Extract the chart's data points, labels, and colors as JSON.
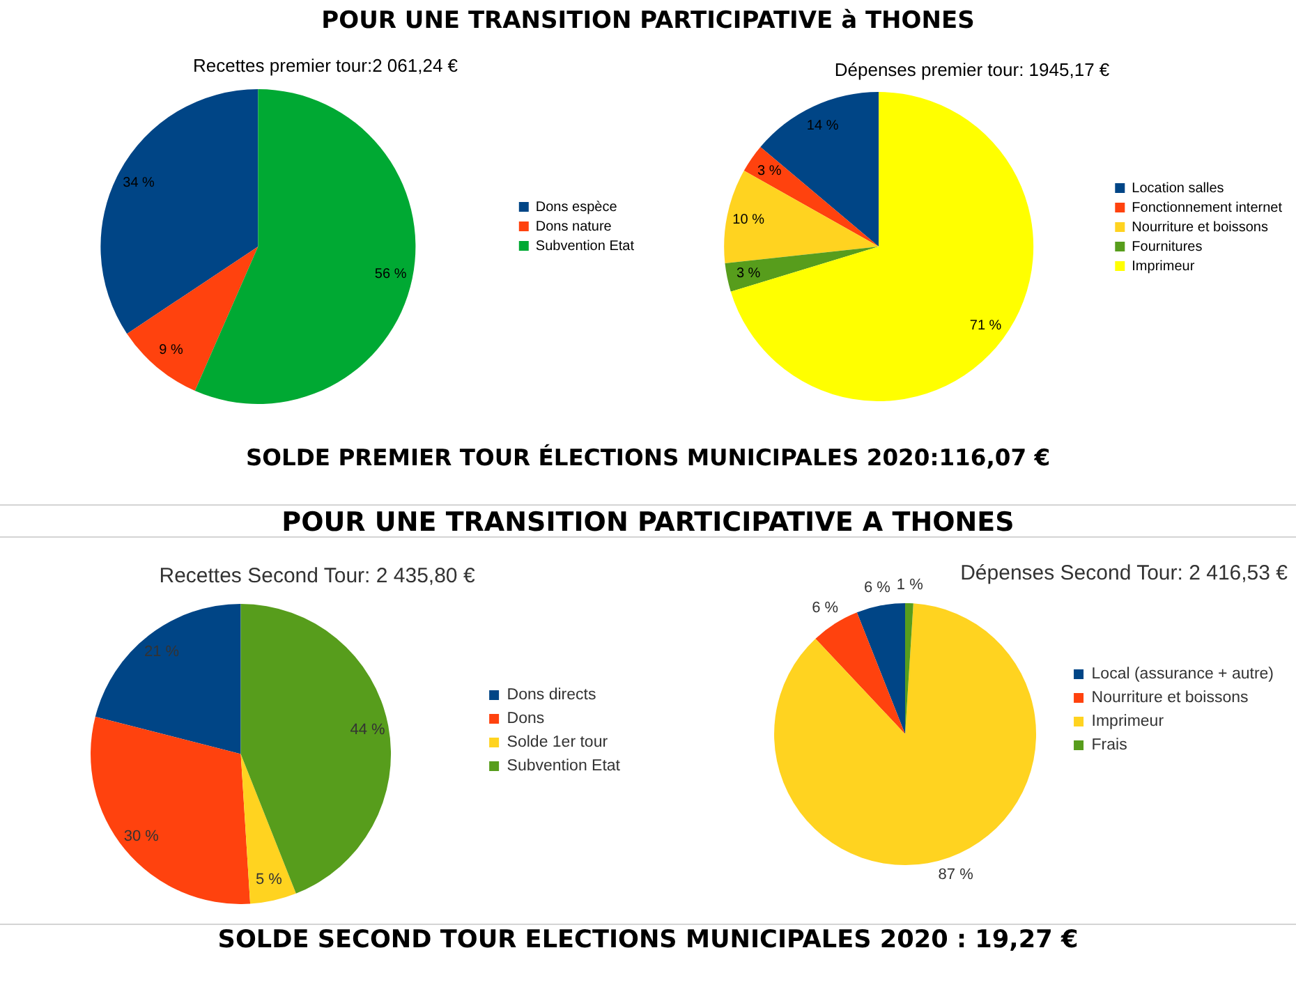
{
  "chart_data": [
    {
      "type": "pie",
      "title": "Recettes premier tour:2 061,24 €",
      "categories": [
        "Dons espèce",
        "Dons nature",
        "Subvention Etat"
      ],
      "values": [
        34,
        9,
        56
      ],
      "colors": [
        "#004586",
        "#ff420e",
        "#00a933"
      ],
      "value_labels": [
        "34 %",
        "9 %",
        "56 %"
      ],
      "legend": "right",
      "annotations": [
        "POUR UNE TRANSITION PARTICIPATIVE à THONES",
        "SOLDE PREMIER TOUR ÉLECTIONS MUNICIPALES 2020:116,07 €"
      ]
    },
    {
      "type": "pie",
      "title": "Dépenses premier tour: 1945,17 €",
      "categories": [
        "Location salles",
        "Fonctionnement internet",
        "Nourriture et boissons",
        "Fournitures",
        "Imprimeur"
      ],
      "values": [
        14,
        3,
        10,
        3,
        71
      ],
      "colors": [
        "#004586",
        "#ff420e",
        "#ffd320",
        "#579d1c",
        "#ffff00"
      ],
      "value_labels": [
        "14 %",
        "3 %",
        "10 %",
        "3 %",
        "71 %"
      ],
      "legend": "right"
    },
    {
      "type": "pie",
      "title": "Recettes Second Tour: 2 435,80 €",
      "categories": [
        "Dons directs",
        "Dons",
        "Solde 1er tour",
        "Subvention Etat"
      ],
      "values": [
        21,
        30,
        5,
        44
      ],
      "colors": [
        "#004586",
        "#ff420e",
        "#ffd320",
        "#579d1c"
      ],
      "value_labels": [
        "21 %",
        "30 %",
        "5 %",
        "44 %"
      ],
      "legend": "right",
      "annotations": [
        "POUR UNE TRANSITION PARTICIPATIVE A THONES",
        "SOLDE SECOND TOUR ELECTIONS MUNICIPALES 2020 : 19,27 €"
      ]
    },
    {
      "type": "pie",
      "title": "Dépenses Second Tour: 2 416,53 €",
      "categories": [
        "Local (assurance + autre)",
        "Nourriture et boissons",
        "Imprimeur",
        "Frais"
      ],
      "values": [
        6,
        6,
        87,
        1
      ],
      "colors": [
        "#004586",
        "#ff420e",
        "#ffd320",
        "#579d1c"
      ],
      "value_labels": [
        "6 %",
        "6 %",
        "87 %",
        "1 %"
      ],
      "legend": "right"
    }
  ]
}
